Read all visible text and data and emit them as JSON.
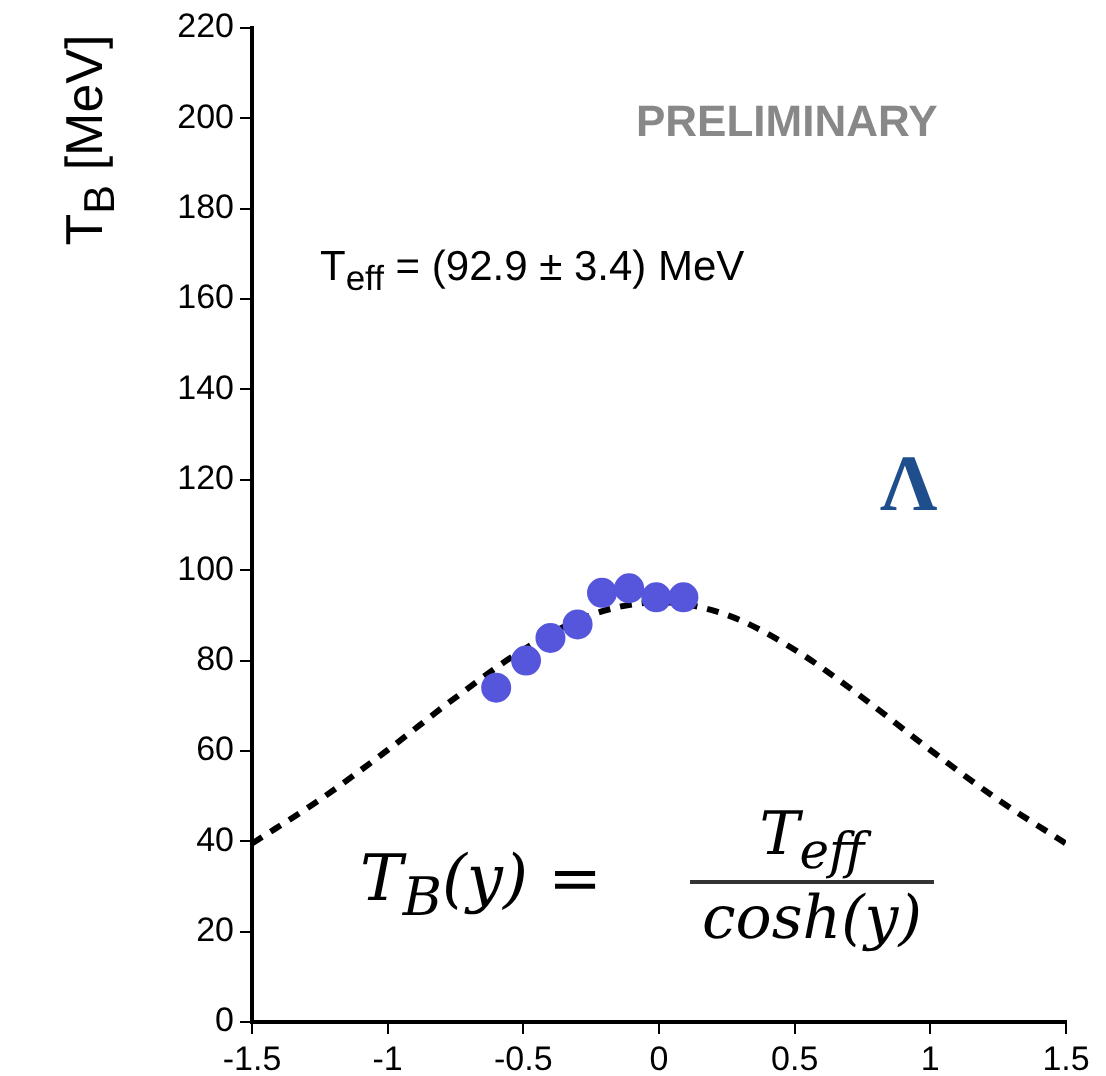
{
  "chart_data": {
    "type": "scatter",
    "ylabel": "T$_{B}$ [MeV]",
    "xlim": [
      -1.5,
      1.5
    ],
    "xticks": [
      -1.5,
      -1,
      -0.5,
      0,
      0.5,
      1,
      1.5
    ],
    "ylim": [
      0,
      220
    ],
    "yticks": [
      0,
      20,
      40,
      60,
      80,
      100,
      120,
      140,
      160,
      180,
      200,
      220
    ],
    "grid": false,
    "legend": false,
    "series": [
      {
        "color": "#5656dc",
        "marker": "circle",
        "x": [
          -0.6,
          -0.49,
          -0.4,
          -0.3,
          -0.21,
          -0.11,
          -0.01,
          0.09
        ],
        "values": [
          74,
          80,
          85,
          88,
          95,
          96,
          94,
          94
        ]
      },
      {
        "type": "line",
        "color": "#000000",
        "marker": "none",
        "line_style": "dashed",
        "x": [
          -1.5,
          -1.25,
          -1,
          -0.75,
          -0.5,
          -0.25,
          0,
          0.25,
          0.5,
          0.75,
          1,
          1.25,
          1.5
        ],
        "values": [
          39.5,
          49.2,
          60.2,
          71.8,
          82.4,
          90.1,
          92.9,
          90.1,
          82.4,
          71.8,
          60.2,
          49.2,
          39.5
        ]
      }
    ],
    "annotations": [
      "PRELIMINARY",
      "T$_{eff}$ = (92.9 ± 3.4) MeV",
      "Λ",
      "T$_{B}$(y) = ",
      "T$_{eff}$",
      "cosh(y)"
    ]
  }
}
